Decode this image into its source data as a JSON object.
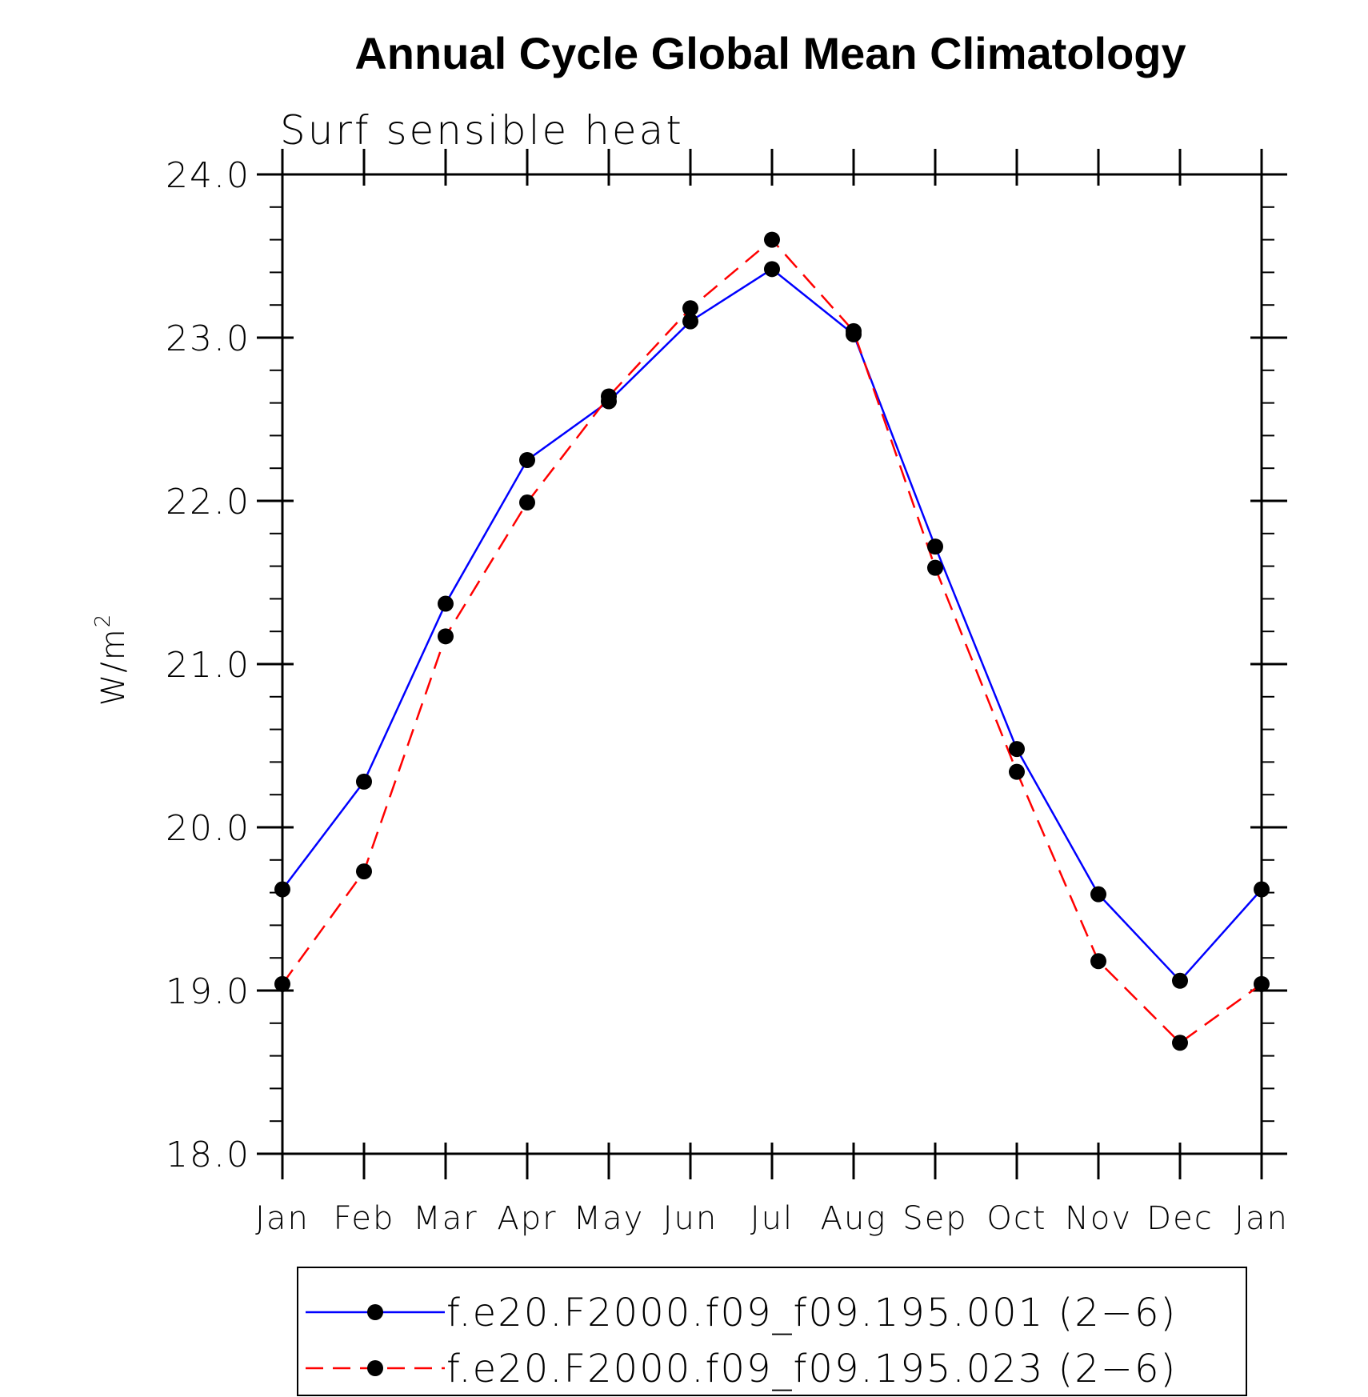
{
  "chart_data": {
    "type": "line",
    "title": "Annual Cycle Global Mean Climatology",
    "subtitle": "Surf sensible heat",
    "ylabel": "W/m",
    "ylabel_superscript": "2",
    "xlabel": "",
    "categories": [
      "Jan",
      "Feb",
      "Mar",
      "Apr",
      "May",
      "Jun",
      "Jul",
      "Aug",
      "Sep",
      "Oct",
      "Nov",
      "Dec",
      "Jan"
    ],
    "ylim": [
      18.0,
      24.0
    ],
    "yticks": [
      "18.0",
      "19.0",
      "20.0",
      "21.0",
      "22.0",
      "23.0",
      "24.0"
    ],
    "series": [
      {
        "name": "f.e20.F2000.f09_f09.195.001 (2−6)",
        "color": "#0000ff",
        "dash": "solid",
        "values": [
          19.62,
          20.28,
          21.37,
          22.25,
          22.61,
          23.1,
          23.42,
          23.02,
          21.72,
          20.48,
          19.59,
          19.06,
          19.62
        ]
      },
      {
        "name": "f.e20.F2000.f09_f09.195.023 (2−6)",
        "color": "#ff0000",
        "dash": "dashed",
        "values": [
          19.04,
          19.73,
          21.17,
          21.99,
          22.64,
          23.18,
          23.6,
          23.04,
          21.59,
          20.34,
          19.18,
          18.68,
          19.04
        ]
      }
    ],
    "legend_position": "bottom"
  }
}
